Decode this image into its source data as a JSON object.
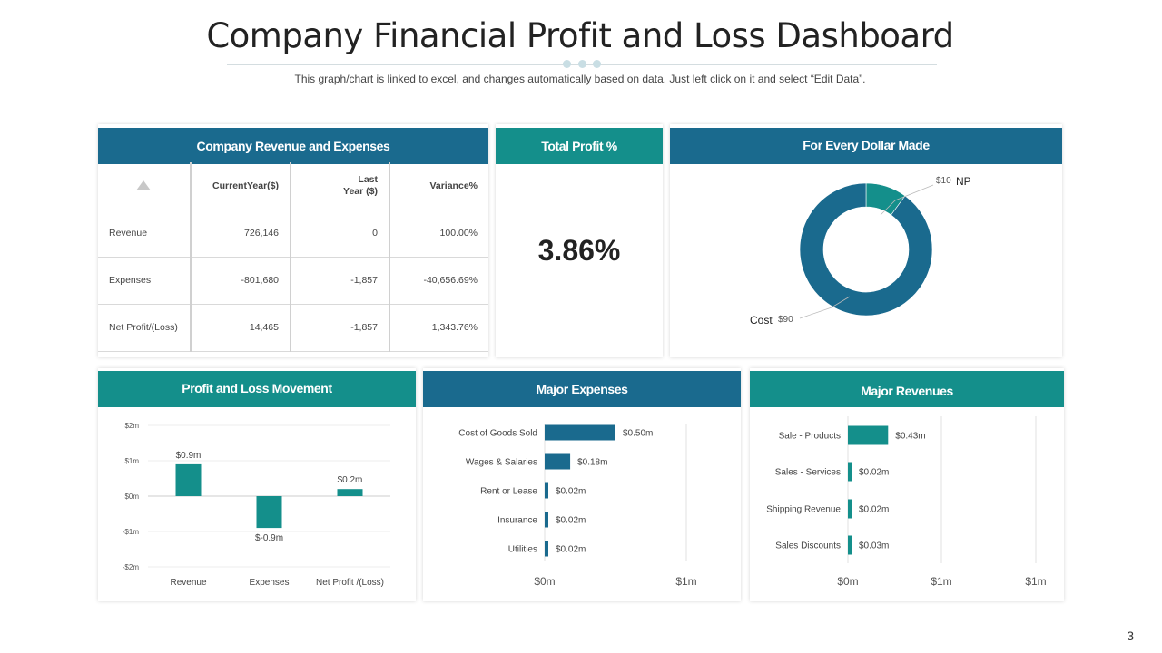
{
  "title": "Company Financial Profit and Loss Dashboard",
  "subtitle": "This graph/chart is linked to excel, and changes automatically based on data. Just left click on it and select “Edit Data”.",
  "page_number": "3",
  "colors": {
    "blue": "#1a6a8e",
    "teal": "#148f8b"
  },
  "revenue_table": {
    "header": "Company Revenue and Expenses",
    "sort_icon": "triangle-up-icon",
    "columns": [
      "CurrentYear($)",
      "Last\nYear ($)",
      "Variance%"
    ],
    "rows": [
      {
        "label": "Revenue",
        "current": "726,146",
        "last": "0",
        "variance": "100.00%"
      },
      {
        "label": "Expenses",
        "current": "-801,680",
        "last": "-1,857",
        "variance": "-40,656.69%"
      },
      {
        "label": "Net Profit/(Loss)",
        "current": "14,465",
        "last": "-1,857",
        "variance": "1,343.76%"
      }
    ]
  },
  "total_profit": {
    "header": "Total Profit %",
    "value": "3.86%"
  },
  "chart_data": [
    {
      "type": "pie",
      "title": "For Every Dollar Made",
      "variant": "donut",
      "slices": [
        {
          "name": "NP",
          "value": 10,
          "label": "$10"
        },
        {
          "name": "Cost",
          "value": 90,
          "label": "$90"
        }
      ]
    },
    {
      "type": "bar",
      "title": "Profit and Loss Movement",
      "categories": [
        "Revenue",
        "Expenses",
        "Net Profit /(Loss)"
      ],
      "values": [
        0.9,
        -0.9,
        0.2
      ],
      "data_labels": [
        "$0.9m",
        "$-0.9m",
        "$0.2m"
      ],
      "yticks": [
        "$2m",
        "$1m",
        "$0m",
        "-$1m",
        "-$2m"
      ],
      "ylim": [
        -2,
        2
      ],
      "grid": true
    },
    {
      "type": "bar",
      "orientation": "horizontal",
      "title": "Major Expenses",
      "categories": [
        "Cost of Goods Sold",
        "Wages & Salaries",
        "Rent or Lease",
        "Insurance",
        "Utilities"
      ],
      "values": [
        0.5,
        0.18,
        0.02,
        0.02,
        0.02
      ],
      "data_labels": [
        "$0.50m",
        "$0.18m",
        "$0.02m",
        "$0.02m",
        "$0.02m"
      ],
      "xticks": [
        "$0m",
        "$1m"
      ],
      "xlim": [
        0,
        1
      ]
    },
    {
      "type": "bar",
      "orientation": "horizontal",
      "title": "Major Revenues",
      "categories": [
        "Sale - Products",
        "Sales - Services",
        "Shipping Revenue",
        "Sales Discounts"
      ],
      "values": [
        0.43,
        0.02,
        0.02,
        0.03
      ],
      "data_labels": [
        "$0.43m",
        "$0.02m",
        "$0.02m",
        "$0.03m"
      ],
      "xticks": [
        "$0m",
        "$1m",
        "$1m"
      ],
      "xlim": [
        0,
        1
      ]
    }
  ]
}
